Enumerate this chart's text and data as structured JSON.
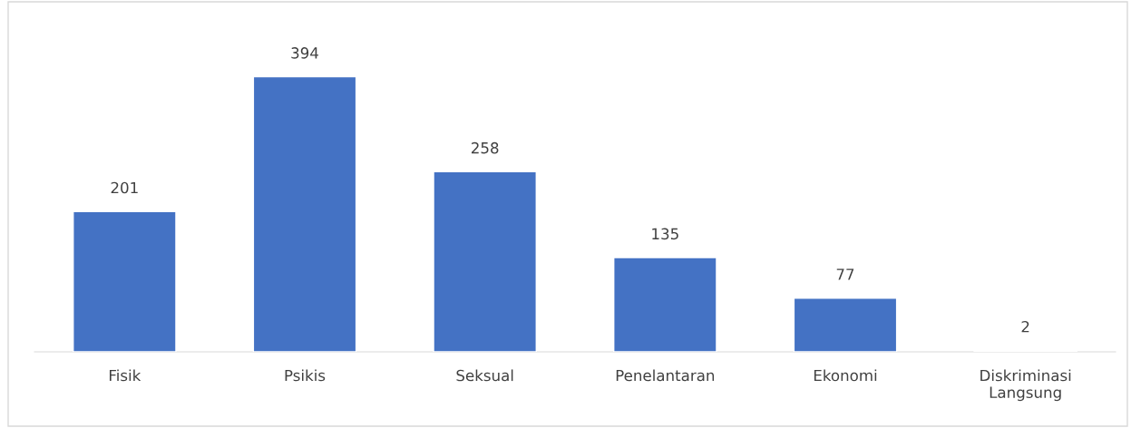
{
  "chart_data": {
    "type": "bar",
    "categories": [
      "Fisik",
      "Psikis",
      "Seksual",
      "Penelantaran",
      "Ekonomi",
      "Diskriminasi\nLangsung"
    ],
    "values": [
      201,
      394,
      258,
      135,
      77,
      2
    ],
    "color": "#4472c4",
    "data_labels": true,
    "grid": false,
    "legend": false
  }
}
